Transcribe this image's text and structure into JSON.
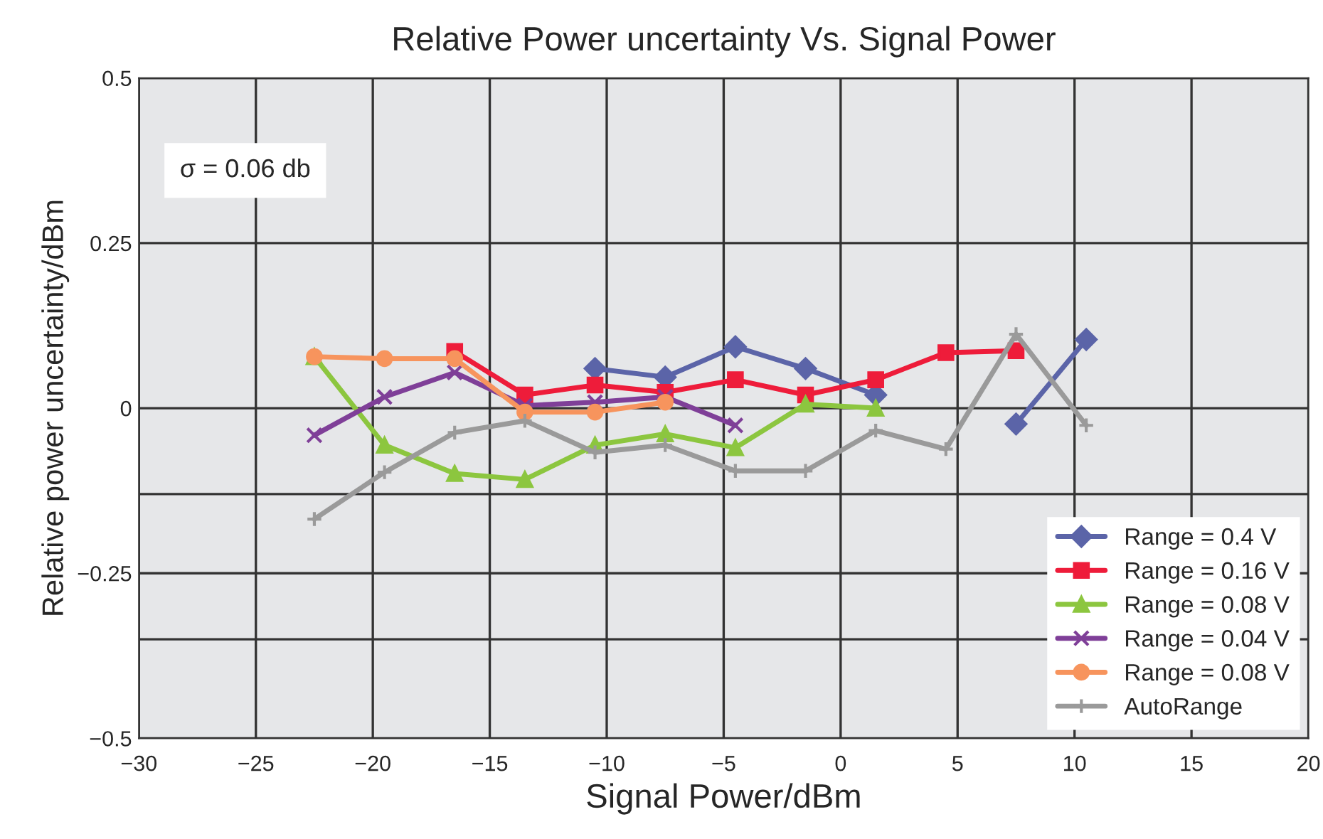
{
  "chart_data": {
    "type": "line",
    "title": "Relative Power uncertainty Vs. Signal Power",
    "xlabel": "Signal Power/dBm",
    "ylabel": "Relative power uncertainty/dBm",
    "annotations": [
      "σ = 0.06 db"
    ],
    "x": [
      -22.5,
      -19.5,
      -16.5,
      -13.5,
      -10.5,
      -7.5,
      -4.5,
      -1.5,
      1.5,
      4.5,
      7.5,
      10.5
    ],
    "series": [
      {
        "name": "Range = 0.4 V",
        "color": "#5b64a8",
        "marker": "diamond",
        "values": [
          null,
          null,
          null,
          null,
          0.06,
          0.047,
          0.093,
          0.06,
          0.02,
          null,
          -0.024,
          0.104
        ]
      },
      {
        "name": "Range = 0.16 V",
        "color": "#ee1c3a",
        "marker": "square",
        "values": [
          null,
          null,
          0.086,
          0.02,
          0.035,
          0.024,
          0.043,
          0.02,
          0.043,
          0.084,
          0.087,
          null
        ]
      },
      {
        "name": "Range = 0.08 V",
        "color": "#8cc63f",
        "marker": "triangle",
        "values": [
          0.078,
          -0.056,
          -0.099,
          -0.108,
          -0.056,
          -0.039,
          -0.06,
          0.006,
          0.0,
          null,
          null,
          null
        ]
      },
      {
        "name": "Range = 0.04 V",
        "color": "#7f3f98",
        "marker": "cross",
        "values": [
          -0.041,
          0.017,
          0.054,
          0.004,
          0.009,
          0.017,
          -0.026,
          null,
          null,
          null,
          null,
          null
        ]
      },
      {
        "name": "Range = 0.08 V",
        "color": "#f7945d",
        "marker": "circle",
        "values": [
          0.078,
          0.075,
          0.075,
          -0.006,
          -0.006,
          0.009,
          null,
          null,
          null,
          null,
          null,
          null
        ]
      },
      {
        "name": "AutoRange",
        "color": "#9a9a9a",
        "marker": "plus",
        "values": [
          -0.168,
          -0.097,
          -0.037,
          -0.019,
          -0.067,
          -0.056,
          -0.095,
          -0.095,
          -0.034,
          -0.062,
          0.112,
          -0.026
        ]
      }
    ],
    "xlim": [
      -30,
      20
    ],
    "xticks": [
      {
        "value": -30,
        "label": "−30"
      },
      {
        "value": -25,
        "label": "−25"
      },
      {
        "value": -20,
        "label": "−20"
      },
      {
        "value": -15,
        "label": "−15"
      },
      {
        "value": -10,
        "label": "−10"
      },
      {
        "value": -5,
        "label": "−5"
      },
      0,
      5,
      10,
      15,
      20
    ],
    "ylim": [
      -0.5,
      0.5
    ],
    "yticks": [
      {
        "value": -0.5,
        "label": "−0.5"
      },
      {
        "value": -0.35,
        "label": null
      },
      {
        "value": -0.25,
        "label": "−0.25"
      },
      {
        "value": -0.13,
        "label": null
      },
      0,
      0.25,
      0.5
    ],
    "grid": true,
    "legend": "bottom right",
    "line_style": "solid"
  }
}
